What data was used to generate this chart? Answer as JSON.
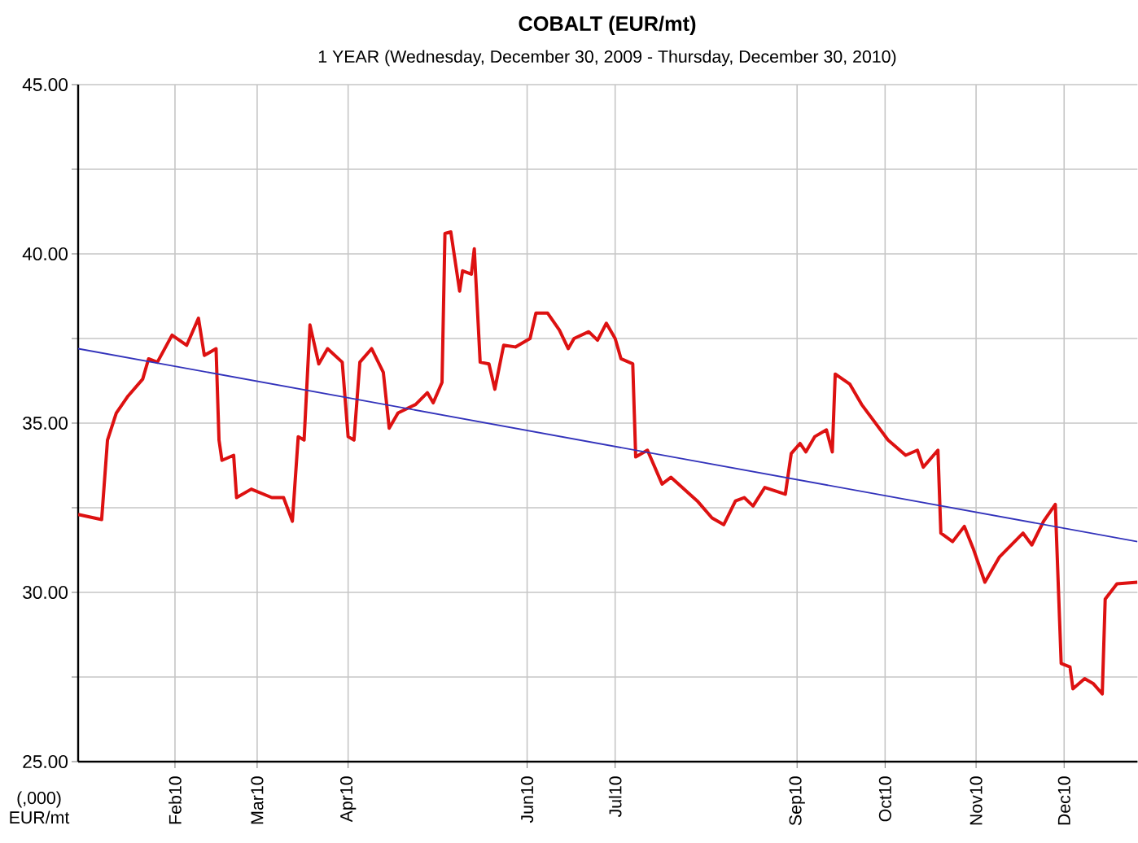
{
  "chart_data": {
    "type": "line",
    "title": "COBALT (EUR/mt)",
    "subtitle": "1 YEAR (Wednesday, December 30, 2009  -  Thursday, December 30, 2010)",
    "ylabel": "(,000) EUR/mt",
    "xlim": [
      "2009-12-30",
      "2010-12-26"
    ],
    "ylim": [
      25,
      45
    ],
    "grid": true,
    "xticks": [
      {
        "value": "2010-02-01",
        "label": "Feb10"
      },
      {
        "value": "2010-03-01",
        "label": "Mar10"
      },
      {
        "value": "2010-04-01",
        "label": "Apr10"
      },
      {
        "value": "2010-06-01",
        "label": "Jun10"
      },
      {
        "value": "2010-07-01",
        "label": "Jul10"
      },
      {
        "value": "2010-09-01",
        "label": "Sep10"
      },
      {
        "value": "2010-10-01",
        "label": "Oct10"
      },
      {
        "value": "2010-11-01",
        "label": "Nov10"
      },
      {
        "value": "2010-12-01",
        "label": "Dec10"
      }
    ],
    "yticks": [
      {
        "value": 25,
        "label": "25.00"
      },
      {
        "value": 27.5,
        "label": null
      },
      {
        "value": 30,
        "label": "30.00"
      },
      {
        "value": 32.5,
        "label": null
      },
      {
        "value": 35,
        "label": "35.00"
      },
      {
        "value": 37.5,
        "label": null
      },
      {
        "value": 40,
        "label": "40.00"
      },
      {
        "value": 42.5,
        "label": null
      },
      {
        "value": 45,
        "label": "45.00"
      }
    ],
    "series": [
      {
        "type": "line",
        "color": "#dd1111",
        "x": [
          "2009-12-30",
          "2010-01-07",
          "2010-01-09",
          "2010-01-12",
          "2010-01-16",
          "2010-01-21",
          "2010-01-23",
          "2010-01-26",
          "2010-01-31",
          "2010-02-05",
          "2010-02-09",
          "2010-02-11",
          "2010-02-15",
          "2010-02-16",
          "2010-02-17",
          "2010-02-21",
          "2010-02-22",
          "2010-02-27",
          "2010-03-06",
          "2010-03-10",
          "2010-03-13",
          "2010-03-15",
          "2010-03-17",
          "2010-03-19",
          "2010-03-22",
          "2010-03-25",
          "2010-03-30",
          "2010-04-01",
          "2010-04-03",
          "2010-04-05",
          "2010-04-09",
          "2010-04-13",
          "2010-04-15",
          "2010-04-18",
          "2010-04-24",
          "2010-04-28",
          "2010-04-30",
          "2010-05-03",
          "2010-05-04",
          "2010-05-06",
          "2010-05-09",
          "2010-05-10",
          "2010-05-13",
          "2010-05-14",
          "2010-05-16",
          "2010-05-19",
          "2010-05-21",
          "2010-05-24",
          "2010-05-28",
          "2010-06-02",
          "2010-06-04",
          "2010-06-08",
          "2010-06-12",
          "2010-06-15",
          "2010-06-17",
          "2010-06-22",
          "2010-06-25",
          "2010-06-28",
          "2010-07-01",
          "2010-07-03",
          "2010-07-07",
          "2010-07-08",
          "2010-07-12",
          "2010-07-17",
          "2010-07-20",
          "2010-07-29",
          "2010-08-03",
          "2010-08-07",
          "2010-08-11",
          "2010-08-14",
          "2010-08-17",
          "2010-08-21",
          "2010-08-28",
          "2010-08-30",
          "2010-09-02",
          "2010-09-04",
          "2010-09-07",
          "2010-09-11",
          "2010-09-13",
          "2010-09-14",
          "2010-09-19",
          "2010-09-23",
          "2010-09-26",
          "2010-10-02",
          "2010-10-08",
          "2010-10-12",
          "2010-10-14",
          "2010-10-19",
          "2010-10-20",
          "2010-10-24",
          "2010-10-28",
          "2010-10-31",
          "2010-11-04",
          "2010-11-09",
          "2010-11-17",
          "2010-11-20",
          "2010-11-24",
          "2010-11-28",
          "2010-11-30",
          "2010-12-03",
          "2010-12-04",
          "2010-12-08",
          "2010-12-11",
          "2010-12-14",
          "2010-12-15",
          "2010-12-19",
          "2010-12-26"
        ],
        "values": [
          32.3,
          32.15,
          34.5,
          35.3,
          35.8,
          36.3,
          36.9,
          36.8,
          37.6,
          37.3,
          38.1,
          37.0,
          37.2,
          34.5,
          33.9,
          34.05,
          32.8,
          33.05,
          32.8,
          32.8,
          32.1,
          34.6,
          34.5,
          37.9,
          36.75,
          37.2,
          36.8,
          34.6,
          34.5,
          36.8,
          37.2,
          36.5,
          34.85,
          35.3,
          35.55,
          35.9,
          35.6,
          36.2,
          40.6,
          40.65,
          38.9,
          39.5,
          39.4,
          40.15,
          36.8,
          36.75,
          36.0,
          37.3,
          37.25,
          37.5,
          38.25,
          38.25,
          37.75,
          37.2,
          37.5,
          37.7,
          37.45,
          37.95,
          37.5,
          36.9,
          36.75,
          34.0,
          34.2,
          33.2,
          33.4,
          32.7,
          32.2,
          32.0,
          32.7,
          32.8,
          32.55,
          33.1,
          32.9,
          34.1,
          34.4,
          34.15,
          34.6,
          34.8,
          34.15,
          36.45,
          36.15,
          35.55,
          35.2,
          34.5,
          34.05,
          34.2,
          33.7,
          34.2,
          31.75,
          31.5,
          31.95,
          31.3,
          30.3,
          31.05,
          31.75,
          31.4,
          32.1,
          32.6,
          27.9,
          27.8,
          27.15,
          27.45,
          27.3,
          27.0,
          29.8,
          30.25,
          30.3
        ]
      },
      {
        "type": "line",
        "color": "#3333bb",
        "x": [
          "2009-12-30",
          "2010-12-26"
        ],
        "values": [
          37.2,
          31.5
        ]
      }
    ]
  }
}
